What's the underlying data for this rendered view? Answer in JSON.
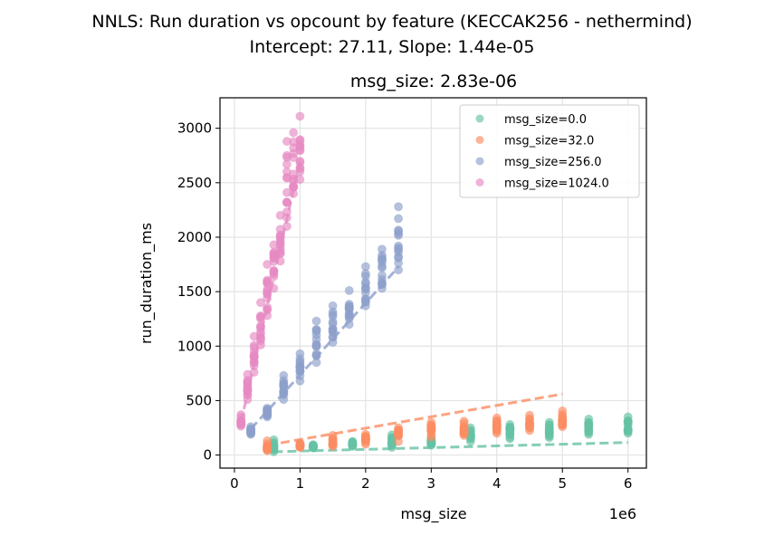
{
  "chart_data": {
    "type": "scatter",
    "suptitle_line1": "NNLS: Run duration vs opcount by feature (KECCAK256 - nethermind)",
    "suptitle_line2": "Intercept: 27.11, Slope: 1.44e-05",
    "title": "msg_size: 2.83e-06",
    "xlabel": "msg_size",
    "ylabel": "run_duration_ms",
    "x_offset_label": "1e6",
    "xlim": [
      -0.22,
      6.28
    ],
    "ylim": [
      -120,
      3280
    ],
    "x_scale_note": "",
    "xticks": [
      0,
      1,
      2,
      3,
      4,
      5,
      6
    ],
    "xtick_labels": [
      "0",
      "1",
      "2",
      "3",
      "4",
      "5",
      "6"
    ],
    "yticks": [
      0,
      500,
      1000,
      1500,
      2000,
      2500,
      3000
    ],
    "ytick_labels": [
      "0",
      "500",
      "1000",
      "1500",
      "2000",
      "2500",
      "3000"
    ],
    "grid": true,
    "legend_position": "top-right",
    "series": [
      {
        "name": "msg_size=0.0",
        "color": "#66c2a5",
        "clusters": [
          [
            0.6,
            30,
            140
          ],
          [
            1.2,
            65,
            95
          ],
          [
            1.8,
            80,
            125
          ],
          [
            2.4,
            70,
            185
          ],
          [
            3.0,
            90,
            160
          ],
          [
            3.6,
            125,
            250
          ],
          [
            4.2,
            150,
            280
          ],
          [
            4.8,
            160,
            300
          ],
          [
            5.4,
            190,
            330
          ],
          [
            6.0,
            200,
            350
          ]
        ],
        "fit_line": [
          [
            0.6,
            30
          ],
          [
            6.0,
            115
          ]
        ]
      },
      {
        "name": "msg_size=32.0",
        "color": "#fc8d62",
        "clusters": [
          [
            0.5,
            40,
            130
          ],
          [
            1.0,
            70,
            110
          ],
          [
            1.5,
            80,
            180
          ],
          [
            2.0,
            100,
            190
          ],
          [
            2.5,
            125,
            250
          ],
          [
            3.0,
            165,
            300
          ],
          [
            3.5,
            180,
            310
          ],
          [
            4.0,
            200,
            340
          ],
          [
            4.5,
            225,
            365
          ],
          [
            5.0,
            260,
            405
          ]
        ],
        "fit_line": [
          [
            0.5,
            90
          ],
          [
            5.0,
            560
          ]
        ]
      },
      {
        "name": "msg_size=256.0",
        "color": "#8da0cb",
        "clusters": [
          [
            0.25,
            190,
            260
          ],
          [
            0.5,
            350,
            430
          ],
          [
            0.75,
            510,
            730
          ],
          [
            1.0,
            680,
            930
          ],
          [
            1.25,
            850,
            1230
          ],
          [
            1.5,
            1035,
            1370
          ],
          [
            1.75,
            1200,
            1510
          ],
          [
            2.0,
            1370,
            1730
          ],
          [
            2.25,
            1530,
            1890
          ],
          [
            2.5,
            1700,
            2280
          ]
        ],
        "fit_line": [
          [
            0.25,
            239
          ],
          [
            2.5,
            1726
          ]
        ]
      },
      {
        "name": "msg_size=1024.0",
        "color": "#e78ac3",
        "clusters": [
          [
            0.1,
            265,
            370
          ],
          [
            0.2,
            510,
            740
          ],
          [
            0.3,
            760,
            1090
          ],
          [
            0.4,
            1010,
            1400
          ],
          [
            0.5,
            1280,
            1750
          ],
          [
            0.6,
            1530,
            1930
          ],
          [
            0.7,
            1780,
            2200
          ],
          [
            0.8,
            2100,
            2880
          ],
          [
            0.9,
            2400,
            2960
          ],
          [
            1.0,
            2530,
            3110
          ]
        ],
        "fit_line": [
          [
            0.1,
            300
          ],
          [
            1.0,
            2700
          ]
        ]
      }
    ]
  }
}
